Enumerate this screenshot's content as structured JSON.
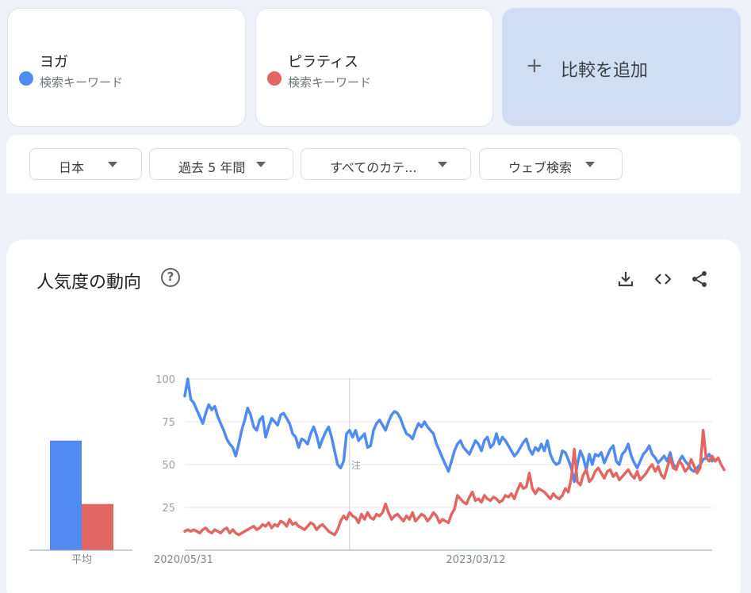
{
  "terms": [
    {
      "name": "ヨガ",
      "sub": "検索キーワード",
      "color": "#4f8bf0"
    },
    {
      "name": "ピラティス",
      "sub": "検索キーワード",
      "color": "#e26661"
    }
  ],
  "add_compare": {
    "plus": "+",
    "label": "比較を追加"
  },
  "filters": [
    {
      "label": "日本"
    },
    {
      "label": "過去 5 年間"
    },
    {
      "label": "すべてのカテ..."
    },
    {
      "label": "ウェブ検索"
    }
  ],
  "panel": {
    "title": "人気度の動向",
    "help": "?",
    "icons": [
      "download-icon",
      "embed-code-icon",
      "share-icon"
    ]
  },
  "chart_data": {
    "type": "line",
    "xlabel": "",
    "ylabel": "",
    "ylim": [
      0,
      100
    ],
    "y_ticks": [
      25,
      50,
      75,
      100
    ],
    "x_tick_labels": [
      "2020/05/31",
      "2023/03/12"
    ],
    "annotation": "注",
    "average_bar": {
      "label": "平均",
      "values": [
        64,
        27
      ]
    },
    "series": [
      {
        "name": "ヨガ",
        "color": "#4f8bf0",
        "values": [
          90,
          100,
          88,
          86,
          82,
          78,
          74,
          80,
          85,
          82,
          84,
          78,
          74,
          70,
          65,
          62,
          60,
          55,
          62,
          70,
          76,
          83,
          79,
          72,
          70,
          76,
          78,
          66,
          72,
          77,
          75,
          73,
          79,
          80,
          77,
          74,
          68,
          66,
          60,
          65,
          64,
          62,
          68,
          72,
          67,
          60,
          65,
          69,
          72,
          66,
          58,
          50,
          48,
          52,
          68,
          70,
          66,
          70,
          64,
          66,
          68,
          60,
          61,
          70,
          74,
          76,
          73,
          70,
          75,
          79,
          81,
          80,
          77,
          72,
          68,
          67,
          65,
          70,
          74,
          72,
          75,
          72,
          70,
          68,
          62,
          58,
          54,
          50,
          46,
          52,
          58,
          62,
          64,
          60,
          58,
          56,
          60,
          64,
          62,
          58,
          64,
          66,
          60,
          62,
          68,
          62,
          66,
          64,
          61,
          58,
          55,
          57,
          60,
          63,
          65,
          59,
          56,
          60,
          58,
          62,
          58,
          64,
          56,
          52,
          50,
          51,
          58,
          57,
          53,
          48,
          40,
          50,
          58,
          54,
          47,
          56,
          50,
          56,
          55,
          57,
          51,
          55,
          59,
          61,
          52,
          50,
          56,
          58,
          62,
          55,
          51,
          48,
          52,
          56,
          58,
          61,
          56,
          54,
          51,
          53,
          55,
          52,
          57,
          50,
          48,
          52,
          55,
          52,
          50,
          47,
          46,
          48,
          50,
          53,
          54,
          56,
          52
        ]
      },
      {
        "name": "ピラティス",
        "color": "#e26661",
        "values": [
          11,
          12,
          11,
          12,
          11,
          10,
          12,
          13,
          11,
          10,
          12,
          11,
          10,
          12,
          13,
          10,
          12,
          10,
          9,
          10,
          11,
          12,
          13,
          14,
          12,
          13,
          15,
          14,
          16,
          13,
          15,
          14,
          17,
          16,
          14,
          18,
          15,
          16,
          14,
          13,
          12,
          14,
          16,
          15,
          12,
          14,
          15,
          13,
          11,
          10,
          9,
          12,
          17,
          20,
          18,
          22,
          20,
          19,
          16,
          21,
          18,
          22,
          19,
          18,
          21,
          20,
          22,
          27,
          22,
          18,
          20,
          21,
          19,
          17,
          20,
          18,
          22,
          17,
          19,
          21,
          20,
          17,
          19,
          22,
          20,
          16,
          18,
          17,
          16,
          21,
          24,
          32,
          30,
          28,
          27,
          31,
          34,
          29,
          30,
          28,
          32,
          30,
          29,
          31,
          30,
          28,
          29,
          32,
          31,
          33,
          30,
          35,
          39,
          36,
          37,
          45,
          36,
          33,
          36,
          35,
          34,
          32,
          30,
          33,
          31,
          30,
          32,
          36,
          34,
          42,
          59,
          40,
          38,
          44,
          47,
          40,
          42,
          46,
          48,
          45,
          42,
          46,
          47,
          43,
          45,
          41,
          43,
          45,
          47,
          44,
          42,
          46,
          41,
          43,
          45,
          48,
          50,
          46,
          49,
          44,
          42,
          48,
          54,
          48,
          47,
          52,
          50,
          46,
          48,
          53,
          49,
          45,
          48,
          70,
          54,
          52,
          55,
          52,
          54,
          50,
          47
        ]
      }
    ]
  }
}
